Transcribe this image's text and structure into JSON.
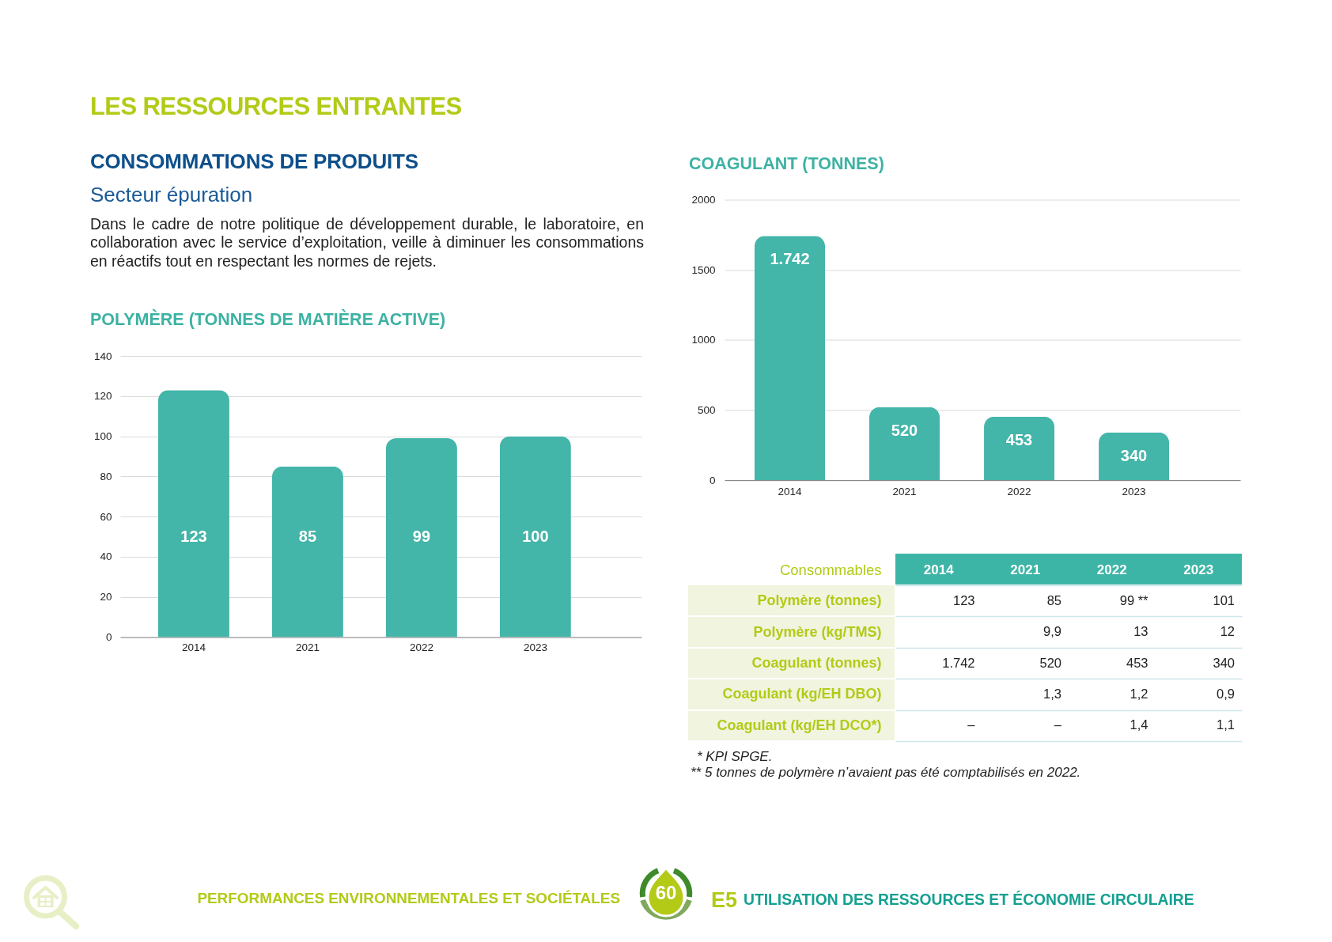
{
  "chart_data": [
    {
      "type": "bar",
      "title": "POLYMÈRE (TONNES DE MATIÈRE ACTIVE)",
      "categories": [
        "2014",
        "2021",
        "2022",
        "2023"
      ],
      "values": [
        123,
        85,
        99,
        100
      ],
      "color": "#43b5a9",
      "ylim": [
        0,
        140
      ],
      "yticks": [
        0,
        20,
        40,
        60,
        80,
        100,
        120,
        140
      ],
      "grid": "y",
      "data_labels": true,
      "annotations": [
        "LES RESSOURCES ENTRANTES",
        "CONSOMMATIONS DE PRODUITS",
        "Secteur épuration",
        "Dans le cadre de notre politique de développement durable, le laboratoire, en collaboration avec le service d’exploitation, veille à diminuer les consommations en réactifs tout en respectant les normes de rejets."
      ]
    },
    {
      "type": "bar",
      "title": "COAGULANT (TONNES)",
      "categories": [
        "2014",
        "2021",
        "2022",
        "2023"
      ],
      "values": [
        1742,
        520,
        453,
        340
      ],
      "value_labels": [
        "1.742",
        "520",
        "453",
        "340"
      ],
      "color": "#43b5a9",
      "ylim": [
        0,
        2000
      ],
      "yticks": [
        0,
        500,
        1000,
        1500,
        2000
      ],
      "grid": "y"
    },
    {
      "type": "heatmap",
      "ylabel": "Consommables",
      "categories": [
        "2014",
        "2021",
        "2022",
        "2023"
      ],
      "y_categories": [
        "Polymère (tonnes)",
        "Polymère (kg/TMS)",
        "Coagulant (tonnes)",
        "Coagulant (kg/EH DBO)",
        "Coagulant (kg/EH DCO*)"
      ],
      "cells": [
        [
          123,
          85,
          99,
          101
        ],
        [
          null,
          9.9,
          13,
          12
        ],
        [
          1742,
          520,
          453,
          340
        ],
        [
          null,
          1.3,
          1.2,
          0.9
        ],
        [
          null,
          null,
          1.4,
          1.1
        ]
      ],
      "cell_labels": [
        [
          "123",
          "85",
          "99 **",
          "101"
        ],
        [
          null,
          "9,9",
          "13",
          "12"
        ],
        [
          "1.742",
          "520",
          "453",
          "340"
        ],
        [
          null,
          "1,3",
          "1,2",
          "0,9"
        ],
        [
          "–",
          "–",
          "1,4",
          "1,1"
        ]
      ],
      "grid": "y",
      "annotations": [
        "* KPI SPGE.",
        "** 5 tonnes de polymère n’avaient pas été comptabilisés en 2022.",
        "PERFORMANCES ENVIRONNEMENTALES ET SOCIÉTALES",
        "60",
        "E5",
        "UTILISATION DES RESSOURCES ET ÉCONOMIE CIRCULAIRE"
      ]
    }
  ]
}
